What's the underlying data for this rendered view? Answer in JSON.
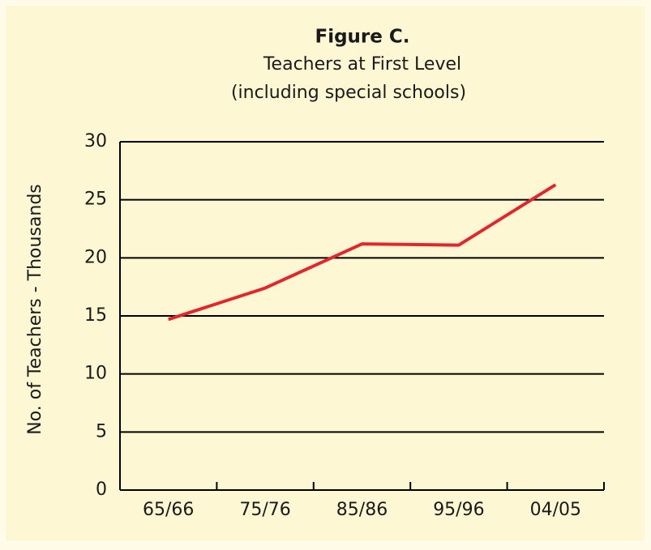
{
  "chart_data": {
    "type": "line",
    "title": "Figure C.",
    "subtitle": [
      "Teachers at First Level",
      "(including special schools)"
    ],
    "y_label": "No. of Teachers - Thousands",
    "categories": [
      "65/66",
      "75/76",
      "85/86",
      "95/96",
      "04/05"
    ],
    "series": [
      {
        "name": "Teachers",
        "color": "#e3262d",
        "values": [
          14.7,
          17.4,
          21.2,
          21.1,
          26.3
        ]
      }
    ],
    "ylim": [
      0,
      30
    ],
    "yticks": [
      0,
      5,
      10,
      15,
      20,
      25,
      30
    ],
    "grid": true
  }
}
